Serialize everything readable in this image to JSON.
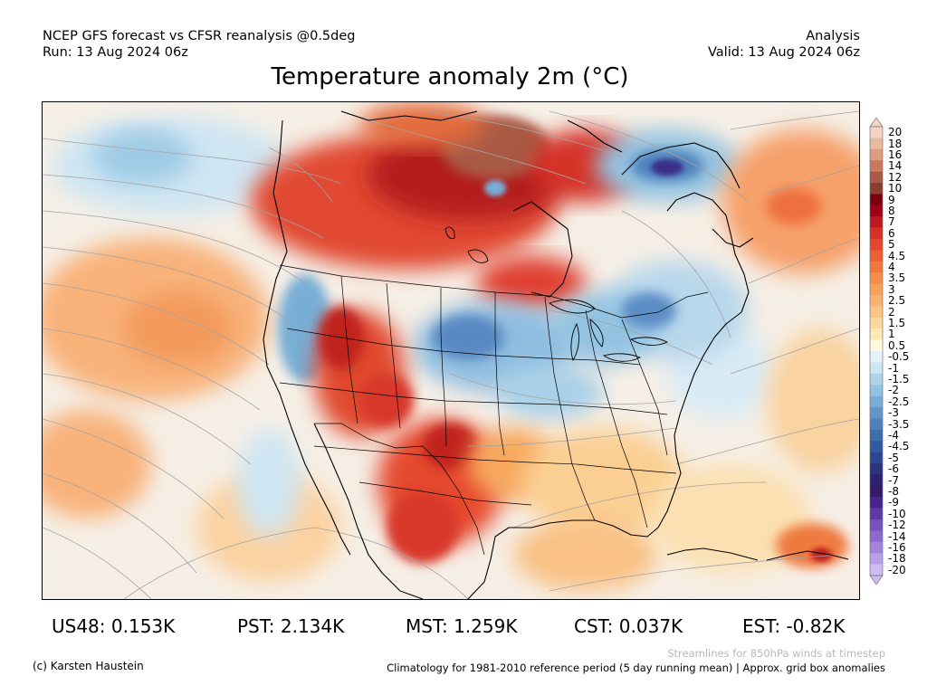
{
  "header": {
    "left_line1": "NCEP GFS forecast vs CFSR reanalysis @0.5deg",
    "left_line2": "Run: 13 Aug 2024 06z",
    "right_line1": "Analysis",
    "right_line2": "Valid: 13 Aug 2024 06z"
  },
  "title": "Temperature anomaly 2m (°C)",
  "colorbar": {
    "labels": [
      "20",
      "18",
      "16",
      "14",
      "12",
      "10",
      "9",
      "8",
      "7",
      "6",
      "5",
      "4.5",
      "4",
      "3.5",
      "3",
      "2.5",
      "2",
      "1.5",
      "1",
      "0.5",
      "-0.5",
      "-1",
      "-1.5",
      "-2",
      "-2.5",
      "-3",
      "-3.5",
      "-4",
      "-4.5",
      "-5",
      "-6",
      "-7",
      "-8",
      "-9",
      "-10",
      "-12",
      "-14",
      "-16",
      "-18",
      "-20"
    ],
    "colors": [
      "#f2d3c6",
      "#e9b9a2",
      "#dc9c7f",
      "#c8795e",
      "#a85a45",
      "#8a3e30",
      "#7a0010",
      "#9d0016",
      "#be1820",
      "#d63027",
      "#e5472e",
      "#ee5f34",
      "#f3773c",
      "#f68c48",
      "#f8a05a",
      "#f9b36e",
      "#fbc684",
      "#fcd89c",
      "#fde9b6",
      "#fff8dc",
      "#e6f2f9",
      "#cbe5f2",
      "#afd4ea",
      "#93c3e1",
      "#78aed6",
      "#6298c9",
      "#4f82bc",
      "#406dae",
      "#35599f",
      "#2e468f",
      "#2b347f",
      "#2d2371",
      "#351a66",
      "#48258e",
      "#5e3aa8",
      "#7452bf",
      "#8b6ad0",
      "#a284de",
      "#b99fe8",
      "#d0bbf2"
    ]
  },
  "stats": [
    {
      "label": "US48:",
      "value": "0.153K"
    },
    {
      "label": "PST:",
      "value": "2.134K"
    },
    {
      "label": "MST:",
      "value": "1.259K"
    },
    {
      "label": "CST:",
      "value": "0.037K"
    },
    {
      "label": "EST:",
      "value": "-0.82K"
    }
  ],
  "footer": {
    "streamline_note": "Streamlines for 850hPa winds at timestep",
    "copyright": "(c) Karsten Haustein",
    "climatology": "Climatology for 1981-2010 reference period (5 day running mean) | Approx. grid box anomalies"
  }
}
